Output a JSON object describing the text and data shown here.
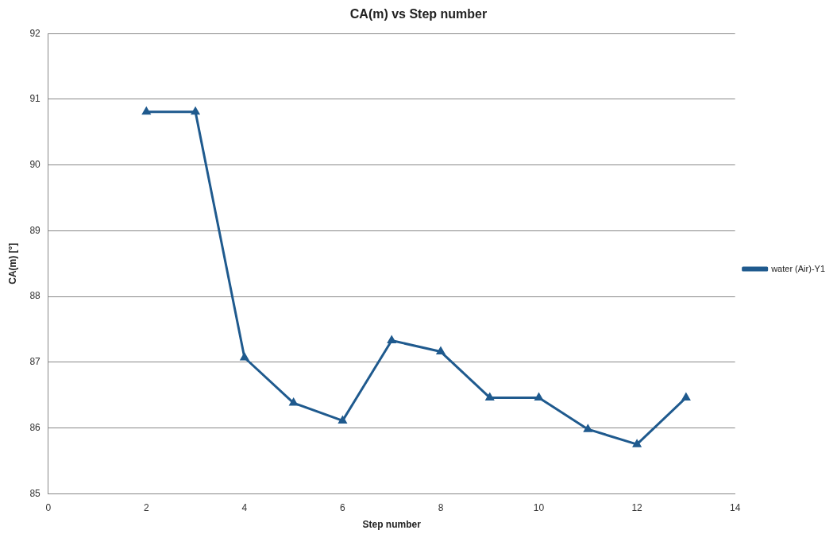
{
  "chart_data": {
    "type": "line",
    "title": "CA(m) vs Step number",
    "xlabel": "Step number",
    "ylabel": "CA(m) [°]",
    "x": [
      2,
      3,
      4,
      5,
      6,
      7,
      8,
      9,
      10,
      11,
      12,
      13
    ],
    "series": [
      {
        "name": "water (Air)-Y1",
        "color": "#1f5a8e",
        "values": [
          90.81,
          90.81,
          87.07,
          86.38,
          86.11,
          87.33,
          87.16,
          86.46,
          86.46,
          85.98,
          85.75,
          86.46
        ]
      }
    ],
    "xlim": [
      0,
      14
    ],
    "xticks": [
      0,
      2,
      4,
      6,
      8,
      10,
      12,
      14
    ],
    "ylim": [
      85,
      92
    ],
    "yticks": [
      85,
      86,
      87,
      88,
      89,
      90,
      91,
      92
    ],
    "grid": "y",
    "legend": "right",
    "marker": "triangle",
    "line_style": "solid"
  }
}
